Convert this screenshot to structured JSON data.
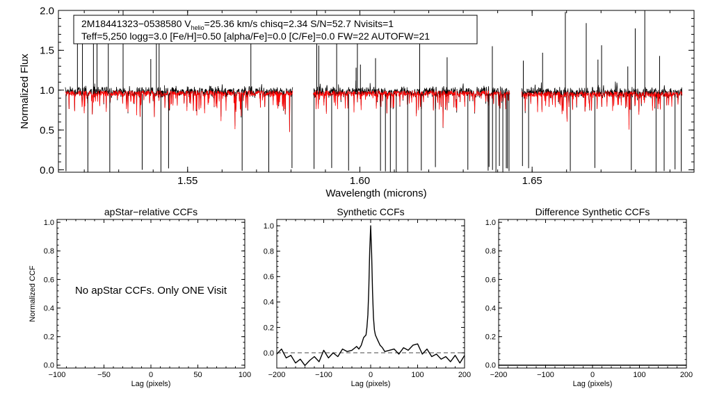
{
  "chart_data": [
    {
      "type": "line",
      "id": "spectrum",
      "ylabel": "Normalized Flux",
      "xlabel": "Wavelength (microns)",
      "xlim": [
        1.5125,
        1.697
      ],
      "ylim": [
        -0.03,
        2.0
      ],
      "xticks": [
        1.55,
        1.6,
        1.65
      ],
      "xtick_labels": [
        "1.55",
        "1.60",
        "1.65"
      ],
      "yticks": [
        0.0,
        0.5,
        1.0,
        1.5,
        2.0
      ],
      "ytick_labels": [
        "0.0",
        "0.5",
        "1.0",
        "1.5",
        "2.0"
      ],
      "annotation": {
        "line1_id": "2M18441323−0538580  V",
        "line1_sub": "helio",
        "line1_rest": "=25.36 km/s  chisq=2.34  S/N=52.7  Nvisits=1",
        "line2": "Teff=5,250 logg=3.0 [Fe/H]=0.50 [alpha/Fe]=0.0 [C/Fe]=0.0 FW=22 AUTOFW=21"
      },
      "chips": [
        {
          "x": [
            1.5145,
            1.5805
          ],
          "value": 0.96
        },
        {
          "x": [
            1.5865,
            1.6435
          ],
          "value": 0.96
        },
        {
          "x": [
            1.647,
            1.6935
          ],
          "value": 0.95
        }
      ],
      "series": [
        {
          "name": "observed",
          "color": "#000000"
        },
        {
          "name": "synthetic",
          "color": "#ff0000"
        }
      ]
    },
    {
      "type": "line",
      "id": "apstar",
      "title": "apStar−relative CCFs",
      "ylabel": "Normalized CCF",
      "xlabel": "Lag (pixels)",
      "xlim": [
        -100,
        100
      ],
      "ylim": [
        -0.02,
        1.02
      ],
      "xticks": [
        -100,
        -50,
        0,
        50,
        100
      ],
      "xtick_labels": [
        "−100",
        "−50",
        "0",
        "50",
        "100"
      ],
      "yticks": [
        0.0,
        0.2,
        0.4,
        0.6,
        0.8,
        1.0
      ],
      "ytick_labels": [
        "0.0",
        "0.2",
        "0.4",
        "0.6",
        "0.8",
        "1.0"
      ],
      "message": "No apStar CCFs.  Only ONE Visit",
      "series": []
    },
    {
      "type": "line",
      "id": "synthetic",
      "title": "Synthetic CCFs",
      "xlabel": "Lag (pixels)",
      "xlim": [
        -200,
        200
      ],
      "ylim": [
        -0.12,
        1.05
      ],
      "xticks": [
        -200,
        -100,
        0,
        100,
        200
      ],
      "xtick_labels": [
        "−200",
        "−100",
        "0",
        "100",
        "200"
      ],
      "yticks": [
        0.0,
        0.2,
        0.4,
        0.6,
        0.8,
        1.0
      ],
      "ytick_labels": [
        "0.0",
        "0.2",
        "0.4",
        "0.6",
        "0.8",
        "1.0"
      ],
      "reference_line": {
        "y": 0.0,
        "style": "dashed"
      },
      "series": [
        {
          "name": "ccf",
          "color": "#000000",
          "x": [
            -200,
            -190,
            -180,
            -170,
            -160,
            -150,
            -140,
            -130,
            -120,
            -110,
            -100,
            -90,
            -80,
            -70,
            -60,
            -50,
            -40,
            -30,
            -25,
            -20,
            -15,
            -10,
            -8,
            -6,
            -4,
            -2,
            0,
            2,
            4,
            6,
            8,
            10,
            15,
            20,
            25,
            30,
            40,
            50,
            60,
            70,
            80,
            90,
            100,
            110,
            120,
            130,
            140,
            150,
            160,
            170,
            180,
            190,
            200
          ],
          "y": [
            -0.01,
            0.03,
            -0.04,
            -0.02,
            -0.08,
            -0.05,
            -0.1,
            -0.06,
            -0.03,
            -0.07,
            0.02,
            -0.04,
            0.0,
            -0.03,
            0.03,
            0.01,
            0.02,
            0.05,
            0.03,
            0.06,
            0.12,
            0.14,
            0.2,
            0.3,
            0.5,
            0.8,
            1.0,
            0.78,
            0.48,
            0.28,
            0.18,
            0.14,
            0.1,
            0.06,
            0.04,
            0.01,
            0.02,
            0.03,
            -0.01,
            0.04,
            0.02,
            0.06,
            0.07,
            -0.01,
            0.03,
            -0.03,
            -0.01,
            -0.05,
            -0.03,
            -0.07,
            -0.02,
            -0.08,
            -0.02
          ]
        }
      ]
    },
    {
      "type": "line",
      "id": "difference",
      "title": "Difference Synthetic CCFs",
      "xlabel": "Lag (pixels)",
      "xlim": [
        -200,
        200
      ],
      "ylim": [
        -0.02,
        1.02
      ],
      "xticks": [
        -200,
        -100,
        0,
        100,
        200
      ],
      "xtick_labels": [
        "−200",
        "−100",
        "0",
        "100",
        "200"
      ],
      "yticks": [
        0.0,
        0.2,
        0.4,
        0.6,
        0.8,
        1.0
      ],
      "ytick_labels": [
        "0.0",
        "0.2",
        "0.4",
        "0.6",
        "0.8",
        "1.0"
      ],
      "series": [
        {
          "name": "difference",
          "color": "#000000",
          "x": [
            -200,
            200
          ],
          "y": [
            0.0,
            0.0
          ]
        }
      ]
    }
  ]
}
